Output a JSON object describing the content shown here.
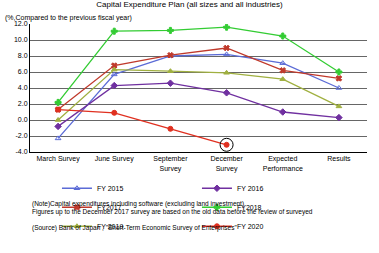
{
  "chart_data": {
    "type": "line",
    "title": "Capital Expenditure Plan (all sizes and all industries)",
    "y_label": "(%,Compared to the previous fiscal year)",
    "categories": [
      "March Survey",
      "June Survey",
      "September Survey",
      "December Survey",
      "Expected Performance",
      "Results"
    ],
    "series": [
      {
        "name": "FY 2015",
        "color": "#5b6bd6",
        "marker": "triangle-up-open",
        "values": [
          -2.3,
          5.7,
          8.0,
          8.2,
          7.1,
          4.0
        ]
      },
      {
        "name": "FY 2016",
        "color": "#7030a0",
        "marker": "diamond",
        "values": [
          -0.8,
          4.3,
          4.6,
          3.4,
          1.0,
          0.3
        ]
      },
      {
        "name": "FY2017",
        "color": "#c0392b",
        "marker": "x",
        "values": [
          1.3,
          6.8,
          8.1,
          9.0,
          6.2,
          5.2
        ]
      },
      {
        "name": "FY2018",
        "color": "#33cc33",
        "marker": "cross",
        "values": [
          2.2,
          11.1,
          11.2,
          11.6,
          10.5,
          6.0
        ]
      },
      {
        "name": "FY 2019",
        "color": "#a0b040",
        "marker": "triangle-up",
        "values": [
          0.0,
          6.3,
          6.1,
          5.9,
          5.1,
          1.7
        ]
      },
      {
        "name": "FY 2020",
        "color": "#e03020",
        "marker": "circle",
        "values": [
          1.3,
          0.9,
          -1.1,
          -3.1,
          null,
          null
        ]
      }
    ],
    "ylim": [
      -4,
      12
    ],
    "yticks": [
      {
        "value": -4,
        "label": "-4.0"
      },
      {
        "value": -2,
        "label": "-2.0"
      },
      {
        "value": 0,
        "label": "0.0"
      },
      {
        "value": 2,
        "label": "2.0"
      },
      {
        "value": 4,
        "label": "4.0"
      },
      {
        "value": 6,
        "label": "6.0"
      },
      {
        "value": 8,
        "label": "8.0"
      },
      {
        "value": 10,
        "label": "10.0"
      },
      {
        "value": 12,
        "label": "12.0"
      }
    ],
    "grid": true,
    "legend": "bottom",
    "notes": [
      "(Note)Capital expenditures including software (excluding land investment)",
      "Figures up to the December 2017 survey are based on the old data before the review of surveyed"
    ],
    "source": "(Source) Bank of Japan , \"Short-Term Economic Survey of Enterprises\""
  }
}
